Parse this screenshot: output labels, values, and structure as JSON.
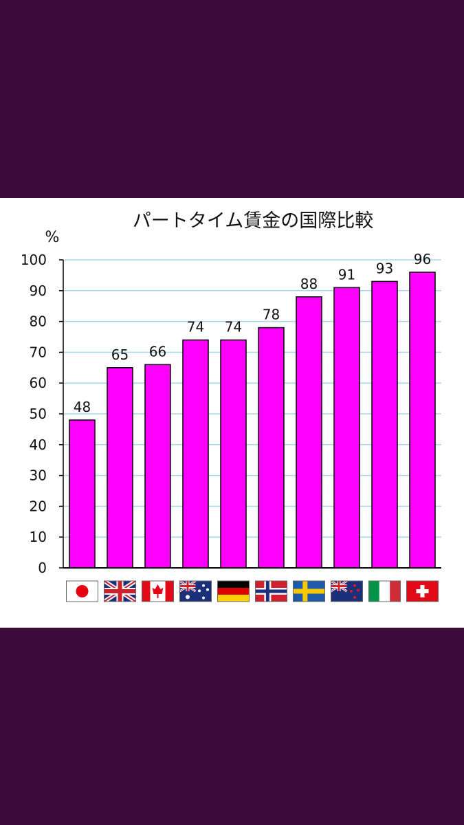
{
  "chart_data": {
    "type": "bar",
    "title": "パートタイム賃金の国際比較",
    "ylabel": "%",
    "xlabel": "",
    "ylim": [
      0,
      100
    ],
    "yticks": [
      0,
      10,
      20,
      30,
      40,
      50,
      60,
      70,
      80,
      90,
      100
    ],
    "grid": true,
    "legend": "none",
    "categories": [
      "jp-flag",
      "gb-flag",
      "ca-flag",
      "au-flag",
      "de-flag",
      "no-flag",
      "se-flag",
      "nz-flag",
      "it-flag",
      "ch-flag"
    ],
    "values": [
      48,
      65,
      66,
      74,
      74,
      78,
      88,
      91,
      93,
      96
    ],
    "bar_color": "#ff00ff",
    "grid_color": "#a8d8f0"
  }
}
